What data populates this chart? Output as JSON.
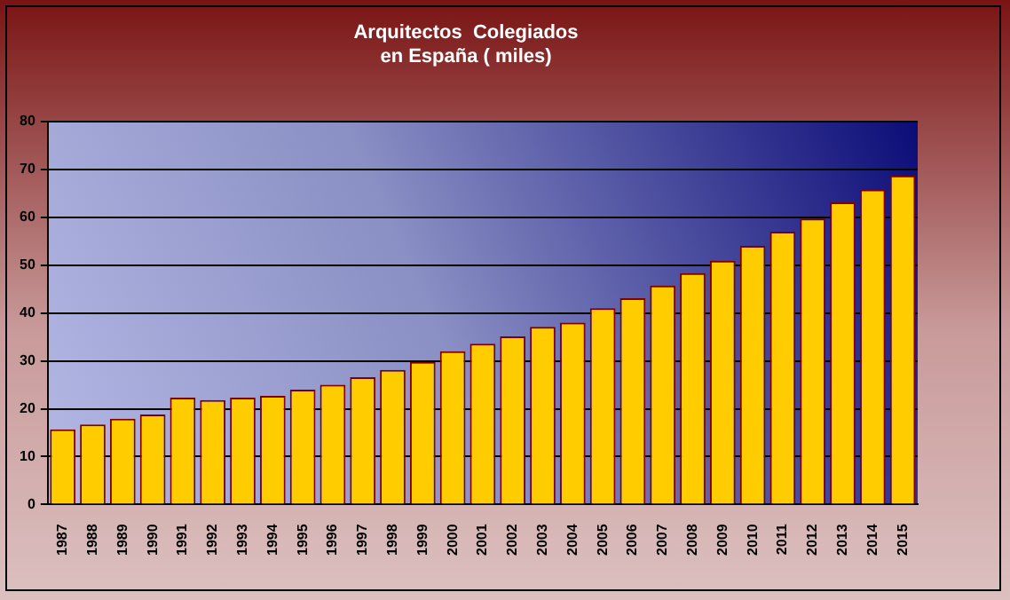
{
  "chart_data": {
    "type": "bar",
    "title": "Arquitectos  Colegiados\nen España ( miles)",
    "categories": [
      "1987",
      "1988",
      "1989",
      "1990",
      "1991",
      "1992",
      "1993",
      "1994",
      "1995",
      "1996",
      "1997",
      "1998",
      "1999",
      "2000",
      "2001",
      "2002",
      "2003",
      "2004",
      "2005",
      "2006",
      "2007",
      "2008",
      "2009",
      "2010",
      "2011",
      "2012",
      "2013",
      "2014",
      "2015"
    ],
    "values": [
      15.7,
      16.7,
      17.9,
      18.8,
      22.3,
      21.8,
      22.3,
      22.7,
      24.0,
      25.0,
      26.6,
      28.1,
      29.8,
      32.0,
      33.6,
      35.1,
      37.1,
      38.0,
      41.0,
      43.1,
      45.7,
      48.3,
      50.9,
      54.0,
      57.0,
      59.7,
      63.1,
      65.8,
      68.7
    ],
    "color": "#ffcc00",
    "ylim": [
      0,
      80
    ],
    "yticks": [
      0,
      10,
      20,
      30,
      40,
      50,
      60,
      70,
      80
    ],
    "grid": "y",
    "legend": false
  }
}
